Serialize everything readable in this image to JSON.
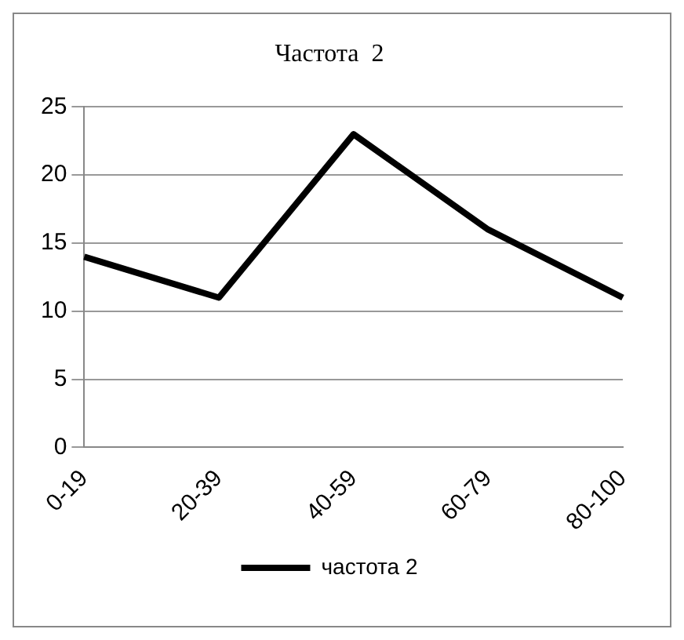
{
  "chart_data": {
    "type": "line",
    "title": "Частота  2",
    "categories": [
      "0-19",
      "20-39",
      "40-59",
      "60-79",
      "80-100"
    ],
    "series": [
      {
        "name": "частота 2",
        "color": "#000000",
        "values": [
          14,
          11,
          23,
          16,
          11
        ]
      }
    ],
    "ylim": [
      0,
      25
    ],
    "yticks": [
      0,
      5,
      10,
      15,
      20,
      25
    ],
    "grid": "y",
    "legend": "bottom",
    "marker": "none",
    "line_style": "solid"
  }
}
